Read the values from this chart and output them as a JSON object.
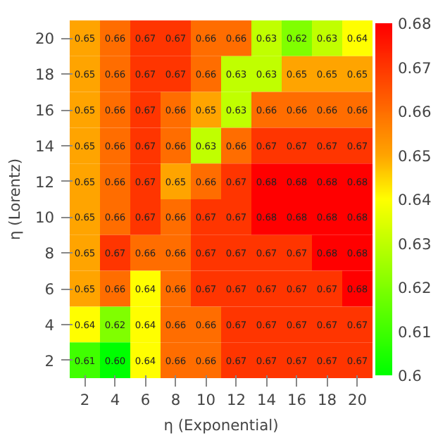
{
  "chart_data": {
    "type": "heatmap",
    "xlabel": "η (Exponential)",
    "ylabel": "η (Lorentz)",
    "categories": [
      "2",
      "4",
      "6",
      "8",
      "10",
      "12",
      "14",
      "16",
      "18",
      "20"
    ],
    "y_categories": [
      "20",
      "18",
      "16",
      "14",
      "12",
      "10",
      "8",
      "6",
      "4",
      "2"
    ],
    "cells": [
      [
        0.65,
        0.66,
        0.67,
        0.67,
        0.66,
        0.66,
        0.63,
        0.62,
        0.63,
        0.64
      ],
      [
        0.65,
        0.66,
        0.67,
        0.67,
        0.66,
        0.63,
        0.63,
        0.65,
        0.65,
        0.65
      ],
      [
        0.65,
        0.66,
        0.67,
        0.66,
        0.65,
        0.63,
        0.66,
        0.66,
        0.66,
        0.66
      ],
      [
        0.65,
        0.66,
        0.67,
        0.66,
        0.63,
        0.66,
        0.67,
        0.67,
        0.67,
        0.67
      ],
      [
        0.65,
        0.66,
        0.67,
        0.65,
        0.66,
        0.67,
        0.68,
        0.68,
        0.68,
        0.68
      ],
      [
        0.65,
        0.66,
        0.67,
        0.66,
        0.67,
        0.67,
        0.68,
        0.68,
        0.68,
        0.68
      ],
      [
        0.65,
        0.67,
        0.66,
        0.66,
        0.67,
        0.67,
        0.67,
        0.67,
        0.68,
        0.68
      ],
      [
        0.65,
        0.66,
        0.64,
        0.66,
        0.67,
        0.67,
        0.67,
        0.67,
        0.67,
        0.68
      ],
      [
        0.64,
        0.62,
        0.64,
        0.66,
        0.66,
        0.67,
        0.67,
        0.67,
        0.67,
        0.67
      ],
      [
        0.61,
        0.6,
        0.64,
        0.66,
        0.66,
        0.67,
        0.67,
        0.67,
        0.67,
        0.67
      ]
    ],
    "data_labels": true,
    "cell_labels": [
      [
        "0.65",
        "0.66",
        "0.67",
        "0.67",
        "0.66",
        "0.66",
        "0.63",
        "0.62",
        "0.63",
        "0.64"
      ],
      [
        "0.65",
        "0.66",
        "0.67",
        "0.67",
        "0.66",
        "0.63",
        "0.63",
        "0.65",
        "0.65",
        "0.65"
      ],
      [
        "0.65",
        "0.66",
        "0.67",
        "0.66",
        "0.65",
        "0.63",
        "0.66",
        "0.66",
        "0.66",
        "0.66"
      ],
      [
        "0.65",
        "0.66",
        "0.67",
        "0.66",
        "0.63",
        "0.66",
        "0.67",
        "0.67",
        "0.67",
        "0.67"
      ],
      [
        "0.65",
        "0.66",
        "0.67",
        "0.65",
        "0.66",
        "0.67",
        "0.68",
        "0.68",
        "0.68",
        "0.68"
      ],
      [
        "0.65",
        "0.66",
        "0.67",
        "0.66",
        "0.67",
        "0.67",
        "0.68",
        "0.68",
        "0.68",
        "0.68"
      ],
      [
        "0.65",
        "0.67",
        "0.66",
        "0.66",
        "0.67",
        "0.67",
        "0.67",
        "0.67",
        "0.68",
        "0.68"
      ],
      [
        "0.65",
        "0.66",
        "0.64",
        "0.66",
        "0.67",
        "0.67",
        "0.67",
        "0.67",
        "0.67",
        "0.68"
      ],
      [
        "0.64",
        "0.62",
        "0.64",
        "0.66",
        "0.66",
        "0.67",
        "0.67",
        "0.67",
        "0.67",
        "0.67"
      ],
      [
        "0.61",
        "0.60",
        "0.64",
        "0.66",
        "0.66",
        "0.67",
        "0.67",
        "0.67",
        "0.67",
        "0.67"
      ]
    ],
    "clim": [
      0.6,
      0.68
    ],
    "cticks": [
      0.6,
      0.61,
      0.62,
      0.63,
      0.64,
      0.65,
      0.66,
      0.67,
      0.68
    ],
    "grid": false
  }
}
